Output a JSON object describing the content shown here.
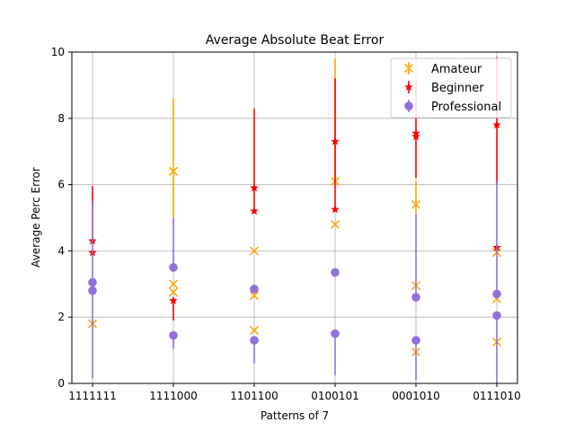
{
  "chart_data": {
    "type": "scatter",
    "title": "Average Absolute Beat Error",
    "xlabel": "Patterns of 7",
    "ylabel": "Average Perc Error",
    "categories": [
      "1111111",
      "1111000",
      "1101100",
      "0100101",
      "0001010",
      "0111010"
    ],
    "ylim": [
      0,
      10
    ],
    "yticks": [
      "0",
      "2",
      "4",
      "6",
      "8",
      "10"
    ],
    "grid": true,
    "legend_position": "top-right",
    "series": [
      {
        "name": "Amateur",
        "marker": "x",
        "color": "#ffa500",
        "points": [
          {
            "x": 0,
            "y": 1.8,
            "lo": 1.8,
            "hi": 1.8
          },
          {
            "x": 1,
            "y": 6.4,
            "lo": 5.0,
            "hi": 8.6
          },
          {
            "x": 1,
            "y": 3.0,
            "lo": 3.0,
            "hi": 3.0
          },
          {
            "x": 1,
            "y": 2.75,
            "lo": 2.75,
            "hi": 2.75
          },
          {
            "x": 2,
            "y": 4.0,
            "lo": 4.0,
            "hi": 4.0
          },
          {
            "x": 2,
            "y": 2.65,
            "lo": 2.65,
            "hi": 2.65
          },
          {
            "x": 2,
            "y": 1.6,
            "lo": 1.6,
            "hi": 1.6
          },
          {
            "x": 3,
            "y": 6.1,
            "lo": 6.1,
            "hi": 9.8
          },
          {
            "x": 3,
            "y": 4.8,
            "lo": 4.8,
            "hi": 4.8
          },
          {
            "x": 4,
            "y": 5.4,
            "lo": 5.1,
            "hi": 6.1
          },
          {
            "x": 4,
            "y": 2.95,
            "lo": 2.95,
            "hi": 2.95
          },
          {
            "x": 4,
            "y": 0.95,
            "lo": 0.95,
            "hi": 0.95
          },
          {
            "x": 5,
            "y": 3.95,
            "lo": 3.95,
            "hi": 3.95
          },
          {
            "x": 5,
            "y": 2.55,
            "lo": 2.55,
            "hi": 2.55
          },
          {
            "x": 5,
            "y": 1.25,
            "lo": 1.25,
            "hi": 1.25
          }
        ]
      },
      {
        "name": "Beginner",
        "marker": "star",
        "color": "#ff0000",
        "points": [
          {
            "x": 0,
            "y": 4.3,
            "lo": 4.3,
            "hi": 5.95
          },
          {
            "x": 0,
            "y": 3.95,
            "lo": 3.95,
            "hi": 3.95
          },
          {
            "x": 1,
            "y": 2.5,
            "lo": 1.9,
            "hi": 2.5
          },
          {
            "x": 2,
            "y": 5.9,
            "lo": 5.2,
            "hi": 8.3
          },
          {
            "x": 2,
            "y": 5.2,
            "lo": 5.2,
            "hi": 5.2
          },
          {
            "x": 3,
            "y": 7.3,
            "lo": 5.3,
            "hi": 9.2
          },
          {
            "x": 3,
            "y": 5.25,
            "lo": 5.25,
            "hi": 5.25
          },
          {
            "x": 4,
            "y": 7.55,
            "lo": 6.2,
            "hi": 9.1
          },
          {
            "x": 4,
            "y": 7.45,
            "lo": 7.45,
            "hi": 7.45
          },
          {
            "x": 5,
            "y": 7.8,
            "lo": 6.0,
            "hi": 9.85
          },
          {
            "x": 5,
            "y": 4.1,
            "lo": 4.1,
            "hi": 4.1
          }
        ]
      },
      {
        "name": "Professional",
        "marker": "circle",
        "color": "#9370db",
        "points": [
          {
            "x": 0,
            "y": 3.05,
            "lo": 0.15,
            "hi": 5.5
          },
          {
            "x": 0,
            "y": 2.8,
            "lo": 2.8,
            "hi": 2.8
          },
          {
            "x": 1,
            "y": 3.5,
            "lo": 3.5,
            "hi": 5.0
          },
          {
            "x": 1,
            "y": 1.45,
            "lo": 1.05,
            "hi": 1.45
          },
          {
            "x": 2,
            "y": 2.85,
            "lo": 2.85,
            "hi": 2.85
          },
          {
            "x": 2,
            "y": 1.3,
            "lo": 0.6,
            "hi": 1.3
          },
          {
            "x": 3,
            "y": 3.35,
            "lo": 3.35,
            "hi": 3.35
          },
          {
            "x": 3,
            "y": 1.5,
            "lo": 0.25,
            "hi": 1.5
          },
          {
            "x": 4,
            "y": 2.6,
            "lo": 2.6,
            "hi": 5.1
          },
          {
            "x": 4,
            "y": 1.3,
            "lo": 0.1,
            "hi": 1.3
          },
          {
            "x": 5,
            "y": 2.7,
            "lo": 2.7,
            "hi": 6.1
          },
          {
            "x": 5,
            "y": 2.05,
            "lo": 0.0,
            "hi": 2.05
          }
        ]
      }
    ]
  }
}
